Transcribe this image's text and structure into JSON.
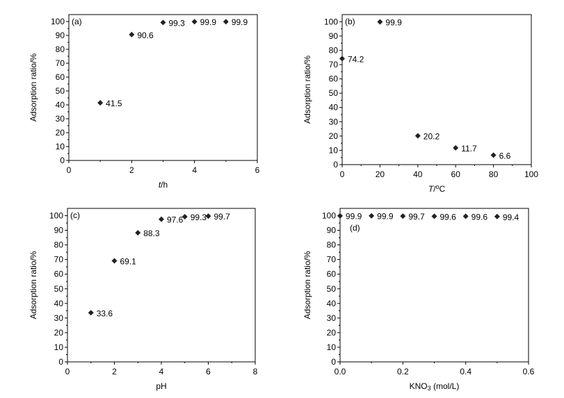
{
  "chart_data": [
    {
      "type": "scatter",
      "panel": "(a)",
      "xlabel": "t/h",
      "xlabel_parts": [
        {
          "text": "t",
          "style": "italic"
        },
        {
          "text": "/h",
          "style": "normal"
        }
      ],
      "ylabel": "Adsorption ratio/%",
      "xlim": [
        0,
        6
      ],
      "ylim": [
        0,
        100
      ],
      "xticks": [
        "0",
        "2",
        "4",
        "6"
      ],
      "yticks": [
        "0",
        "10",
        "20",
        "30",
        "40",
        "50",
        "60",
        "70",
        "80",
        "90",
        "100"
      ],
      "x": [
        1,
        2,
        3,
        4,
        5
      ],
      "y": [
        41.5,
        90.6,
        99.3,
        99.9,
        99.9
      ],
      "labels": [
        "41.5",
        "90.6",
        "99.3",
        "99.9",
        "99.9"
      ],
      "marker": "diamond",
      "grid": false
    },
    {
      "type": "scatter",
      "panel": "(b)",
      "xlabel": "T/°C",
      "xlabel_parts": [
        {
          "text": "T",
          "style": "italic"
        },
        {
          "text": "/",
          "style": "normal"
        },
        {
          "text": "o",
          "style": "sup"
        },
        {
          "text": "C",
          "style": "normal"
        }
      ],
      "ylabel": "Adsorption ratio/%",
      "xlim": [
        0,
        100
      ],
      "ylim": [
        0,
        100
      ],
      "xticks": [
        "0",
        "20",
        "40",
        "60",
        "80",
        "100"
      ],
      "yticks": [
        "0",
        "10",
        "20",
        "30",
        "40",
        "50",
        "60",
        "70",
        "80",
        "90",
        "100"
      ],
      "x": [
        0,
        20,
        40,
        60,
        80
      ],
      "y": [
        74.2,
        99.9,
        20.2,
        11.7,
        6.6
      ],
      "labels": [
        "74.2",
        "99.9",
        "20.2",
        "11.7",
        "6.6"
      ],
      "marker": "diamond",
      "grid": false
    },
    {
      "type": "scatter",
      "panel": "(c)",
      "xlabel": "pH",
      "xlabel_parts": [
        {
          "text": "pH",
          "style": "normal"
        }
      ],
      "ylabel": "Adsorption ratio/%",
      "xlim": [
        0,
        8
      ],
      "ylim": [
        0,
        100
      ],
      "xticks": [
        "0",
        "2",
        "4",
        "6",
        "8"
      ],
      "yticks": [
        "0",
        "10",
        "20",
        "30",
        "40",
        "50",
        "60",
        "70",
        "80",
        "90",
        "100"
      ],
      "x": [
        1,
        2,
        3,
        4,
        5,
        6
      ],
      "y": [
        33.6,
        69.1,
        88.3,
        97.6,
        99.3,
        99.7
      ],
      "labels": [
        "33.6",
        "69.1",
        "88.3",
        "97.6",
        "99.3",
        "99.7"
      ],
      "marker": "diamond",
      "grid": false
    },
    {
      "type": "scatter",
      "panel": "(d)",
      "xlabel": "KNO3 (mol/L)",
      "xlabel_parts": [
        {
          "text": "KNO",
          "style": "normal"
        },
        {
          "text": "3",
          "style": "sub"
        },
        {
          "text": " (mol/L)",
          "style": "normal"
        }
      ],
      "ylabel": "Adsorption ratio/%",
      "xlim": [
        0,
        0.6
      ],
      "ylim": [
        0,
        100
      ],
      "xticks": [
        "0.0",
        "0.2",
        "0.4",
        "0.6"
      ],
      "yticks": [
        "0",
        "10",
        "20",
        "30",
        "40",
        "50",
        "60",
        "70",
        "80",
        "90",
        "100"
      ],
      "x": [
        0.0,
        0.1,
        0.2,
        0.3,
        0.4,
        0.5
      ],
      "y": [
        99.9,
        99.9,
        99.7,
        99.6,
        99.6,
        99.4
      ],
      "labels": [
        "99.9",
        "99.9",
        "99.7",
        "99.6",
        "99.6",
        "99.4"
      ],
      "marker": "diamond",
      "grid": false
    }
  ]
}
